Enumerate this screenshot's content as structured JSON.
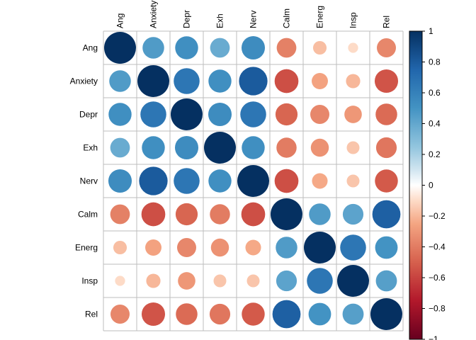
{
  "chart_data": {
    "type": "heatmap",
    "variables": [
      "Ang",
      "Anxiety",
      "Depr",
      "Exh",
      "Nerv",
      "Calm",
      "Energ",
      "Insp",
      "Rel"
    ],
    "matrix": [
      [
        1.0,
        0.46,
        0.52,
        0.38,
        0.54,
        -0.38,
        -0.18,
        -0.1,
        -0.36
      ],
      [
        0.46,
        1.0,
        0.66,
        0.52,
        0.8,
        -0.56,
        -0.26,
        -0.2,
        -0.54
      ],
      [
        0.52,
        0.66,
        1.0,
        0.54,
        0.66,
        -0.48,
        -0.36,
        -0.3,
        -0.46
      ],
      [
        0.38,
        0.52,
        0.54,
        1.0,
        0.52,
        -0.4,
        -0.32,
        -0.16,
        -0.42
      ],
      [
        0.54,
        0.8,
        0.66,
        0.52,
        1.0,
        -0.56,
        -0.24,
        -0.16,
        -0.52
      ],
      [
        -0.38,
        -0.56,
        -0.48,
        -0.4,
        -0.56,
        1.0,
        0.46,
        0.42,
        0.78
      ],
      [
        -0.18,
        -0.26,
        -0.36,
        -0.32,
        -0.24,
        0.46,
        1.0,
        0.66,
        0.5
      ],
      [
        -0.1,
        -0.2,
        -0.3,
        -0.16,
        -0.16,
        0.42,
        0.66,
        1.0,
        0.44
      ],
      [
        -0.36,
        -0.54,
        -0.46,
        -0.42,
        -0.52,
        0.78,
        0.5,
        0.44,
        1.0
      ]
    ],
    "color_scale": {
      "range": [
        -1,
        1
      ],
      "ticks": [
        1,
        0.8,
        0.6,
        0.4,
        0.2,
        0,
        -0.2,
        -0.4,
        -0.6,
        -0.8,
        -1
      ],
      "tick_labels": [
        "1",
        "0.8",
        "0.6",
        "0.4",
        "0.2",
        "0",
        "−0.2",
        "−0.4",
        "−0.6",
        "−0.8",
        "−1"
      ],
      "stops": [
        {
          "v": -1.0,
          "color": "#67001F"
        },
        {
          "v": -0.75,
          "color": "#B2182B"
        },
        {
          "v": -0.5,
          "color": "#D6604D"
        },
        {
          "v": -0.25,
          "color": "#F4A582"
        },
        {
          "v": -0.1,
          "color": "#FDDBC7"
        },
        {
          "v": 0.0,
          "color": "#FFFFFF"
        },
        {
          "v": 0.1,
          "color": "#D1E5F0"
        },
        {
          "v": 0.25,
          "color": "#92C5DE"
        },
        {
          "v": 0.5,
          "color": "#4393C3"
        },
        {
          "v": 0.75,
          "color": "#2166AC"
        },
        {
          "v": 1.0,
          "color": "#053061"
        }
      ]
    },
    "mark_shape": "circle",
    "legend_placement": "right",
    "grid": true,
    "grid_color": "#BEBEBE"
  }
}
